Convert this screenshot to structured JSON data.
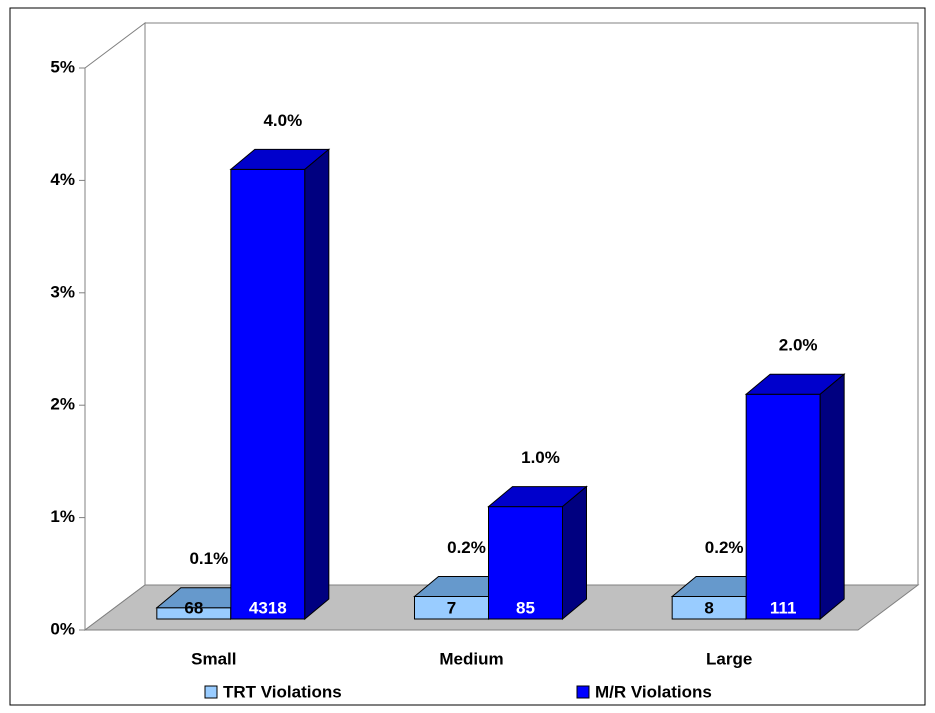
{
  "chart_data": {
    "type": "bar3d",
    "categories": [
      "Small",
      "Medium",
      "Large"
    ],
    "series": [
      {
        "name": "TRT Violations",
        "color": "#99ccff",
        "values": [
          0.1,
          0.2,
          0.2
        ],
        "value_labels": [
          "0.1%",
          "0.2%",
          "0.2%"
        ],
        "counts": [
          68,
          7,
          8
        ]
      },
      {
        "name": "M/R Violations",
        "color": "#0000ff",
        "values": [
          4.0,
          1.0,
          2.0
        ],
        "value_labels": [
          "4.0%",
          "1.0%",
          "2.0%"
        ],
        "counts": [
          4318,
          85,
          111
        ]
      }
    ],
    "ylim": [
      0,
      5
    ],
    "yticks": [
      {
        "value": 0,
        "label": "0%"
      },
      {
        "value": 1,
        "label": "1%"
      },
      {
        "value": 2,
        "label": "2%"
      },
      {
        "value": 3,
        "label": "3%"
      },
      {
        "value": 4,
        "label": "4%"
      },
      {
        "value": 5,
        "label": "5%"
      }
    ],
    "grid": false,
    "legend": "bottom"
  }
}
